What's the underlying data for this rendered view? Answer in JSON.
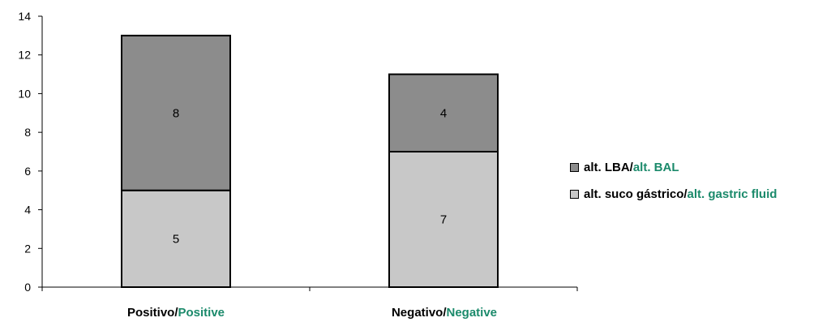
{
  "chart_data": {
    "type": "bar",
    "stacked": true,
    "categories": [
      {
        "pt": "Positivo/",
        "en": "Positive"
      },
      {
        "pt": "Negativo/",
        "en": "Negative"
      }
    ],
    "series": [
      {
        "name_pt": "alt. suco gástrico/",
        "name_en": "alt. gastric fluid",
        "values": [
          5,
          7
        ],
        "color": "#c8c8c8"
      },
      {
        "name_pt": "alt. LBA/",
        "name_en": "alt. BAL",
        "values": [
          8,
          4
        ],
        "color": "#8c8c8c"
      }
    ],
    "ylim": [
      0,
      14
    ],
    "yticks": [
      0,
      2,
      4,
      6,
      8,
      10,
      12,
      14
    ],
    "grid": false,
    "legend_position": "right",
    "accent_color": "#1b8a6b"
  }
}
